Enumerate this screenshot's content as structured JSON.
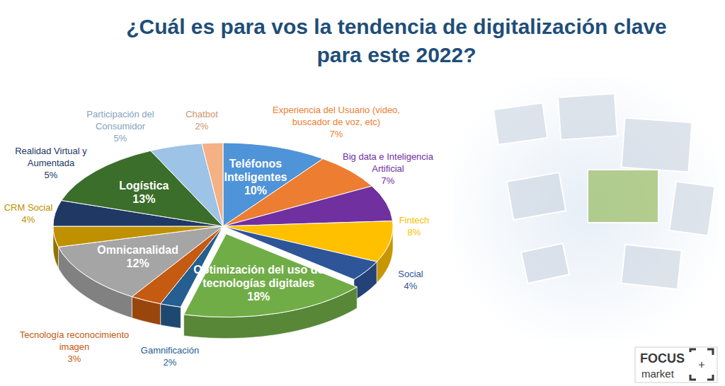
{
  "chart_data": {
    "type": "pie",
    "title": "¿Cuál es para vos la tendencia de digitalización clave para este 2022?",
    "categories": [
      "Teléfonos Inteligentes",
      "Experiencia del Usuario (video, buscador de voz, etc)",
      "Big data e Inteligencia Artificial",
      "Fintech",
      "Social",
      "Optimización del uso de tecnologías digitales",
      "Gamnificación",
      "Tecnología reconocimiento imagen",
      "Omnicanalidad",
      "CRM Social",
      "Realidad Virtual y Aumentada",
      "Logística",
      "Participación del Consumidor",
      "Chatbot"
    ],
    "values": [
      10,
      7,
      7,
      8,
      4,
      18,
      2,
      3,
      12,
      4,
      5,
      13,
      5,
      2
    ],
    "value_labels": [
      "10%",
      "7%",
      "7%",
      "8%",
      "4%",
      "18%",
      "2%",
      "3%",
      "12%",
      "4%",
      "5%",
      "13%",
      "5%",
      "2%"
    ],
    "colors": [
      "#4f93d8",
      "#ed7d31",
      "#7030a0",
      "#ffc000",
      "#2e5597",
      "#70ad47",
      "#255e91",
      "#c55a11",
      "#a5a5a5",
      "#bf9000",
      "#203864",
      "#3b6e2a",
      "#9dc3e6",
      "#f4b183"
    ],
    "data_labels": true,
    "annotations": [
      "FOCUS",
      "market"
    ]
  }
}
